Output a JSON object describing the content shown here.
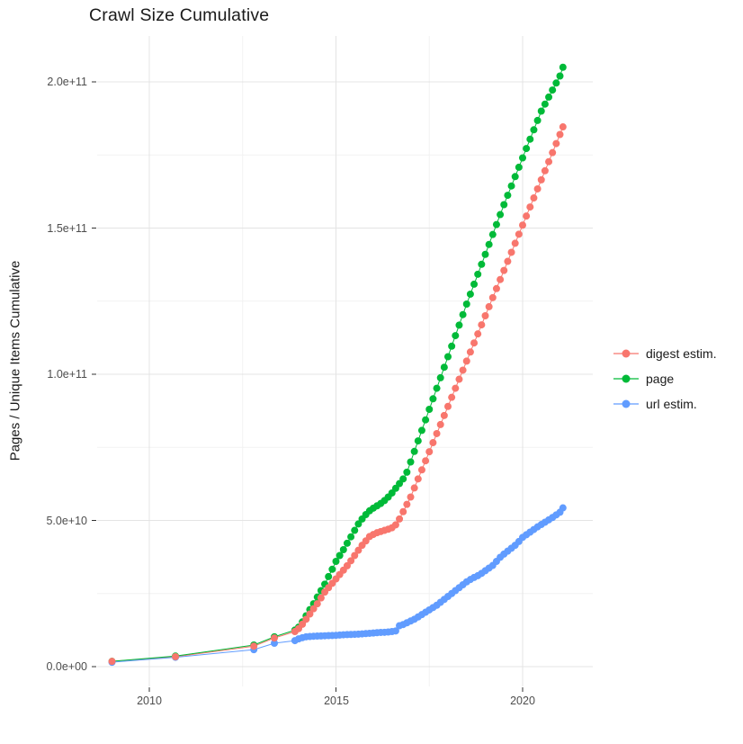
{
  "chart_data": {
    "type": "scatter",
    "title": "Crawl Size Cumulative",
    "xlabel": "",
    "ylabel": "Pages / Unique Items Cumulative",
    "grid": true,
    "legend_position": "right",
    "x_unit": "year",
    "value_multiplier": 1000000000,
    "xlim": [
      2008.6,
      2021.9
    ],
    "ylim": [
      0,
      215000000000
    ],
    "xticks": [
      {
        "value": 2010,
        "label": "2010"
      },
      {
        "value": 2015,
        "label": "2015"
      },
      {
        "value": 2020,
        "label": "2020"
      }
    ],
    "yticks": [
      {
        "value": 0,
        "label": "0.0e+00"
      },
      {
        "value": 50,
        "label": "5.0e+10"
      },
      {
        "value": 100,
        "label": "1.0e+11"
      },
      {
        "value": 150,
        "label": "1.5e+11"
      },
      {
        "value": 200,
        "label": "2.0e+11"
      }
    ],
    "series": [
      {
        "name": "digest estim.",
        "color": "#F8766D",
        "points": [
          [
            2009.0,
            1.8
          ],
          [
            2010.7,
            3.4
          ],
          [
            2012.8,
            7.0
          ],
          [
            2013.35,
            9.8
          ],
          [
            2013.9,
            12.0
          ],
          [
            2014.0,
            13.0
          ],
          [
            2014.1,
            14.5
          ],
          [
            2014.2,
            16.2
          ],
          [
            2014.3,
            18.0
          ],
          [
            2014.4,
            19.8
          ],
          [
            2014.5,
            21.5
          ],
          [
            2014.6,
            23.5
          ],
          [
            2014.7,
            25.5
          ],
          [
            2014.8,
            27.0
          ],
          [
            2014.9,
            28.5
          ],
          [
            2015.0,
            30.0
          ],
          [
            2015.1,
            31.5
          ],
          [
            2015.2,
            33.0
          ],
          [
            2015.3,
            34.5
          ],
          [
            2015.4,
            36.2
          ],
          [
            2015.5,
            38.0
          ],
          [
            2015.6,
            39.8
          ],
          [
            2015.7,
            41.5
          ],
          [
            2015.8,
            43.0
          ],
          [
            2015.9,
            44.5
          ],
          [
            2016.0,
            45.2
          ],
          [
            2016.1,
            45.8
          ],
          [
            2016.2,
            46.2
          ],
          [
            2016.3,
            46.6
          ],
          [
            2016.4,
            47.0
          ],
          [
            2016.5,
            47.5
          ],
          [
            2016.6,
            48.5
          ],
          [
            2016.7,
            50.5
          ],
          [
            2016.8,
            53.0
          ],
          [
            2016.9,
            55.5
          ],
          [
            2017.0,
            58.0
          ],
          [
            2017.1,
            61.1
          ],
          [
            2017.2,
            64.2
          ],
          [
            2017.3,
            67.3
          ],
          [
            2017.4,
            70.4
          ],
          [
            2017.5,
            73.5
          ],
          [
            2017.6,
            76.6
          ],
          [
            2017.7,
            79.7
          ],
          [
            2017.8,
            82.8
          ],
          [
            2017.9,
            85.9
          ],
          [
            2018.0,
            89.0
          ],
          [
            2018.1,
            92.1
          ],
          [
            2018.2,
            95.2
          ],
          [
            2018.3,
            98.3
          ],
          [
            2018.4,
            101.4
          ],
          [
            2018.5,
            104.5
          ],
          [
            2018.6,
            107.6
          ],
          [
            2018.7,
            110.7
          ],
          [
            2018.8,
            113.8
          ],
          [
            2018.9,
            116.9
          ],
          [
            2019.0,
            120.0
          ],
          [
            2019.1,
            123.1
          ],
          [
            2019.2,
            126.2
          ],
          [
            2019.3,
            129.3
          ],
          [
            2019.4,
            132.4
          ],
          [
            2019.5,
            135.5
          ],
          [
            2019.6,
            138.6
          ],
          [
            2019.7,
            141.7
          ],
          [
            2019.8,
            144.8
          ],
          [
            2019.9,
            147.9
          ],
          [
            2020.0,
            151.0
          ],
          [
            2020.1,
            154.1
          ],
          [
            2020.2,
            157.2
          ],
          [
            2020.3,
            160.3
          ],
          [
            2020.4,
            163.4
          ],
          [
            2020.5,
            166.5
          ],
          [
            2020.6,
            169.6
          ],
          [
            2020.7,
            172.7
          ],
          [
            2020.8,
            175.8
          ],
          [
            2020.9,
            178.9
          ],
          [
            2021.0,
            182.0
          ],
          [
            2021.08,
            184.6
          ]
        ]
      },
      {
        "name": "page",
        "color": "#00BA38",
        "points": [
          [
            2009.0,
            1.8
          ],
          [
            2010.7,
            3.6
          ],
          [
            2012.8,
            7.4
          ],
          [
            2013.35,
            10.2
          ],
          [
            2013.9,
            12.5
          ],
          [
            2014.0,
            13.5
          ],
          [
            2014.1,
            15.3
          ],
          [
            2014.2,
            17.4
          ],
          [
            2014.3,
            19.5
          ],
          [
            2014.4,
            21.5
          ],
          [
            2014.5,
            23.8
          ],
          [
            2014.6,
            26.0
          ],
          [
            2014.7,
            28.2
          ],
          [
            2014.8,
            30.8
          ],
          [
            2014.9,
            33.3
          ],
          [
            2015.0,
            36.0
          ],
          [
            2015.1,
            38.0
          ],
          [
            2015.2,
            40.0
          ],
          [
            2015.3,
            42.2
          ],
          [
            2015.4,
            44.4
          ],
          [
            2015.5,
            46.6
          ],
          [
            2015.6,
            48.8
          ],
          [
            2015.7,
            50.5
          ],
          [
            2015.8,
            52.0
          ],
          [
            2015.9,
            53.3
          ],
          [
            2016.0,
            54.2
          ],
          [
            2016.1,
            55.0
          ],
          [
            2016.2,
            55.8
          ],
          [
            2016.3,
            56.8
          ],
          [
            2016.4,
            58.0
          ],
          [
            2016.5,
            59.4
          ],
          [
            2016.6,
            61.0
          ],
          [
            2016.7,
            62.6
          ],
          [
            2016.8,
            64.2
          ],
          [
            2016.9,
            66.5
          ],
          [
            2017.0,
            70.0
          ],
          [
            2017.1,
            73.6
          ],
          [
            2017.2,
            77.2
          ],
          [
            2017.3,
            80.8
          ],
          [
            2017.4,
            84.4
          ],
          [
            2017.5,
            88.0
          ],
          [
            2017.6,
            91.6
          ],
          [
            2017.7,
            95.2
          ],
          [
            2017.8,
            98.8
          ],
          [
            2017.9,
            102.4
          ],
          [
            2018.0,
            106.0
          ],
          [
            2018.1,
            109.6
          ],
          [
            2018.2,
            113.2
          ],
          [
            2018.3,
            116.8
          ],
          [
            2018.4,
            120.4
          ],
          [
            2018.5,
            124.0
          ],
          [
            2018.6,
            127.4
          ],
          [
            2018.7,
            130.8
          ],
          [
            2018.8,
            134.2
          ],
          [
            2018.9,
            137.6
          ],
          [
            2019.0,
            141.0
          ],
          [
            2019.1,
            144.4
          ],
          [
            2019.2,
            147.8
          ],
          [
            2019.3,
            151.2
          ],
          [
            2019.4,
            154.6
          ],
          [
            2019.5,
            158.0
          ],
          [
            2019.6,
            161.2
          ],
          [
            2019.7,
            164.4
          ],
          [
            2019.8,
            167.6
          ],
          [
            2019.9,
            170.8
          ],
          [
            2020.0,
            174.0
          ],
          [
            2020.1,
            177.2
          ],
          [
            2020.2,
            180.4
          ],
          [
            2020.3,
            183.6
          ],
          [
            2020.4,
            186.8
          ],
          [
            2020.5,
            190.0
          ],
          [
            2020.6,
            192.4
          ],
          [
            2020.7,
            194.8
          ],
          [
            2020.8,
            197.2
          ],
          [
            2020.9,
            199.6
          ],
          [
            2021.0,
            202.0
          ],
          [
            2021.08,
            205.0
          ]
        ]
      },
      {
        "name": "url estim.",
        "color": "#619CFF",
        "points": [
          [
            2009.0,
            1.5
          ],
          [
            2010.7,
            3.2
          ],
          [
            2012.8,
            5.8
          ],
          [
            2013.35,
            8.0
          ],
          [
            2013.9,
            8.9
          ],
          [
            2014.0,
            9.5
          ],
          [
            2014.1,
            9.9
          ],
          [
            2014.2,
            10.2
          ],
          [
            2014.3,
            10.3
          ],
          [
            2014.4,
            10.4
          ],
          [
            2014.5,
            10.45
          ],
          [
            2014.6,
            10.5
          ],
          [
            2014.7,
            10.55
          ],
          [
            2014.8,
            10.6
          ],
          [
            2014.9,
            10.65
          ],
          [
            2015.0,
            10.7
          ],
          [
            2015.1,
            10.8
          ],
          [
            2015.2,
            10.9
          ],
          [
            2015.3,
            10.95
          ],
          [
            2015.4,
            11.0
          ],
          [
            2015.5,
            11.05
          ],
          [
            2015.6,
            11.1
          ],
          [
            2015.7,
            11.2
          ],
          [
            2015.8,
            11.3
          ],
          [
            2015.9,
            11.4
          ],
          [
            2016.0,
            11.5
          ],
          [
            2016.1,
            11.6
          ],
          [
            2016.2,
            11.7
          ],
          [
            2016.3,
            11.75
          ],
          [
            2016.4,
            11.85
          ],
          [
            2016.5,
            12.0
          ],
          [
            2016.6,
            12.2
          ],
          [
            2016.7,
            14.0
          ],
          [
            2016.8,
            14.4
          ],
          [
            2016.9,
            15.0
          ],
          [
            2017.0,
            15.6
          ],
          [
            2017.1,
            16.2
          ],
          [
            2017.2,
            17.0
          ],
          [
            2017.3,
            17.8
          ],
          [
            2017.4,
            18.6
          ],
          [
            2017.5,
            19.4
          ],
          [
            2017.6,
            20.2
          ],
          [
            2017.7,
            21.0
          ],
          [
            2017.8,
            22.0
          ],
          [
            2017.9,
            23.0
          ],
          [
            2018.0,
            24.0
          ],
          [
            2018.1,
            25.0
          ],
          [
            2018.2,
            26.0
          ],
          [
            2018.3,
            27.0
          ],
          [
            2018.4,
            28.0
          ],
          [
            2018.5,
            29.0
          ],
          [
            2018.6,
            29.8
          ],
          [
            2018.7,
            30.5
          ],
          [
            2018.8,
            31.1
          ],
          [
            2018.9,
            31.9
          ],
          [
            2019.0,
            32.8
          ],
          [
            2019.1,
            33.7
          ],
          [
            2019.2,
            34.6
          ],
          [
            2019.3,
            36.0
          ],
          [
            2019.4,
            37.4
          ],
          [
            2019.5,
            38.5
          ],
          [
            2019.6,
            39.5
          ],
          [
            2019.7,
            40.5
          ],
          [
            2019.8,
            41.5
          ],
          [
            2019.9,
            42.8
          ],
          [
            2020.0,
            44.2
          ],
          [
            2020.1,
            45.1
          ],
          [
            2020.2,
            46.0
          ],
          [
            2020.3,
            46.9
          ],
          [
            2020.4,
            47.8
          ],
          [
            2020.5,
            48.6
          ],
          [
            2020.6,
            49.4
          ],
          [
            2020.7,
            50.2
          ],
          [
            2020.8,
            51.0
          ],
          [
            2020.9,
            51.9
          ],
          [
            2021.0,
            52.8
          ],
          [
            2021.08,
            54.3
          ]
        ]
      }
    ]
  }
}
